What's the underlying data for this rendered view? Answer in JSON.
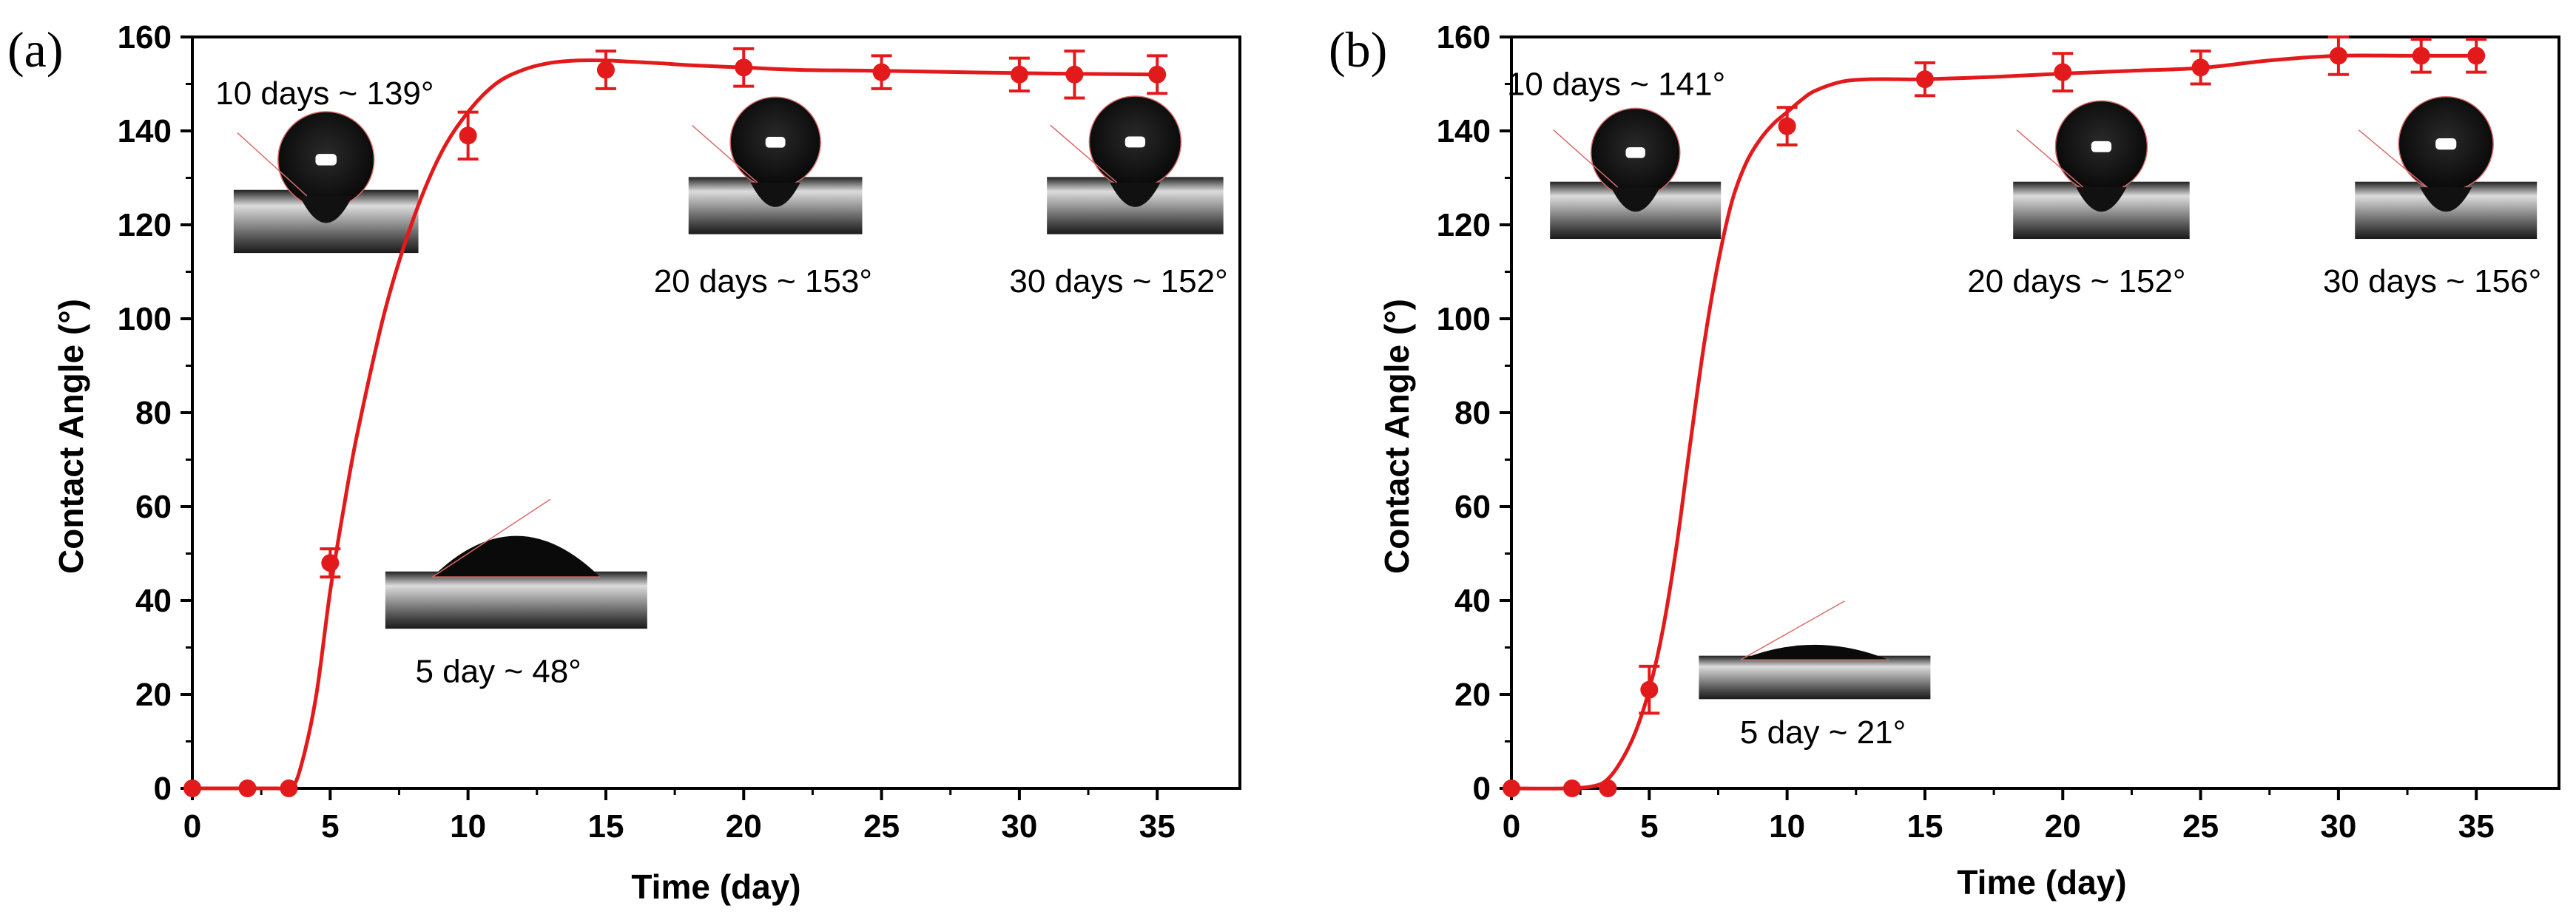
{
  "figure_colors": {
    "series": "#e31a1c",
    "axis": "#000000",
    "contact_line": "#d96b6b"
  },
  "chart_data": [
    {
      "type": "line",
      "panel_label": "(a)",
      "title": "",
      "xlabel": "Time (day)",
      "ylabel": "Contact Angle (°)",
      "xlim": [
        0,
        38
      ],
      "ylim": [
        0,
        160
      ],
      "xticks": [
        0,
        5,
        10,
        15,
        20,
        25,
        30,
        35
      ],
      "yticks": [
        0,
        20,
        40,
        60,
        80,
        100,
        120,
        140,
        160
      ],
      "grid": false,
      "series": [
        {
          "name": "Contact angle",
          "x": [
            0,
            2,
            3.5,
            5,
            10,
            15,
            20,
            25,
            30,
            32,
            35
          ],
          "y": [
            0,
            0,
            0,
            48,
            139,
            153,
            153.5,
            152.5,
            152,
            152,
            152
          ],
          "error": [
            0,
            0,
            0,
            3,
            5,
            4,
            4,
            3.5,
            3.5,
            5,
            4
          ]
        }
      ],
      "fit_curve": {
        "x": [
          0,
          3,
          3.6,
          4,
          4.5,
          5,
          5.5,
          6,
          7,
          8,
          9,
          10,
          11,
          12,
          13,
          14,
          15,
          16,
          17,
          18,
          20,
          22,
          25,
          30,
          35
        ],
        "y": [
          0,
          0,
          0,
          6,
          20,
          42,
          60,
          76,
          102,
          121,
          135,
          144,
          150,
          153,
          154.5,
          155,
          155,
          154.7,
          154.4,
          154,
          153.5,
          153,
          152.8,
          152.3,
          152
        ]
      },
      "annotations": [
        {
          "text": "10 days ~ 139°",
          "x": 4.8,
          "y": 148
        },
        {
          "text": "20 days ~ 153°",
          "x": 20.7,
          "y": 108
        },
        {
          "text": "30 days ~ 152°",
          "x": 33.6,
          "y": 108
        },
        {
          "text": "5 day ~ 48°",
          "x": 11.1,
          "y": 25
        }
      ],
      "insets": [
        {
          "name": "droplet-10days",
          "x": [
            1.5,
            8.2
          ],
          "y": [
            114,
            146
          ],
          "angle_deg": 139
        },
        {
          "name": "droplet-20days",
          "x": [
            18.0,
            24.3
          ],
          "y": [
            118,
            147
          ],
          "angle_deg": 153
        },
        {
          "name": "droplet-30days",
          "x": [
            31.0,
            37.4
          ],
          "y": [
            118,
            147
          ],
          "angle_deg": 152
        },
        {
          "name": "droplet-5day",
          "x": [
            7.0,
            16.5
          ],
          "y": [
            34,
            63
          ],
          "angle_deg": 48
        }
      ]
    },
    {
      "type": "line",
      "panel_label": "(b)",
      "title": "",
      "xlabel": "Time (day)",
      "ylabel": "Contact Angle (°)",
      "xlim": [
        0,
        38
      ],
      "ylim": [
        0,
        160
      ],
      "xticks": [
        0,
        5,
        10,
        15,
        20,
        25,
        30,
        35
      ],
      "yticks": [
        0,
        20,
        40,
        60,
        80,
        100,
        120,
        140,
        160
      ],
      "grid": false,
      "series": [
        {
          "name": "Contact angle",
          "x": [
            0,
            2.2,
            3.5,
            5,
            10,
            15,
            20,
            25,
            30,
            33,
            35
          ],
          "y": [
            0,
            0,
            0,
            21,
            141,
            151,
            152.5,
            153.5,
            156,
            156,
            156
          ],
          "error": [
            0,
            0,
            0,
            5,
            4,
            3.5,
            4,
            3.5,
            4,
            3.5,
            3.5
          ]
        }
      ],
      "fit_curve": {
        "x": [
          0,
          2,
          3,
          3.5,
          4,
          4.5,
          5,
          5.5,
          6,
          6.5,
          7,
          7.5,
          8,
          8.5,
          9,
          9.5,
          10,
          10.5,
          11,
          12,
          13,
          14,
          15,
          17.5,
          20,
          22.5,
          25,
          27.5,
          30,
          32.5,
          35
        ],
        "y": [
          0,
          0,
          0.5,
          2,
          6,
          12,
          21,
          34,
          52,
          74,
          95,
          112,
          125,
          133,
          138,
          141.5,
          144,
          146.5,
          148.5,
          150.5,
          151,
          151,
          151,
          151.5,
          152.2,
          152.8,
          153.4,
          155,
          156,
          156,
          156
        ]
      },
      "annotations": [
        {
          "text": "10 days ~ 141°",
          "x": 3.8,
          "y": 150
        },
        {
          "text": "20 days ~ 152°",
          "x": 20.5,
          "y": 108
        },
        {
          "text": "30 days ~ 156°",
          "x": 33.4,
          "y": 108
        },
        {
          "text": "5 day ~ 21°",
          "x": 11.3,
          "y": 12
        }
      ],
      "insets": [
        {
          "name": "droplet-10days",
          "x": [
            1.4,
            7.6
          ],
          "y": [
            117,
            146
          ],
          "angle_deg": 141
        },
        {
          "name": "droplet-20days",
          "x": [
            18.2,
            24.6
          ],
          "y": [
            117,
            146
          ],
          "angle_deg": 152
        },
        {
          "name": "droplet-30days",
          "x": [
            30.6,
            37.2
          ],
          "y": [
            117,
            146
          ],
          "angle_deg": 156
        },
        {
          "name": "droplet-5day",
          "x": [
            6.8,
            15.2
          ],
          "y": [
            19,
            41
          ],
          "angle_deg": 21
        }
      ]
    }
  ]
}
